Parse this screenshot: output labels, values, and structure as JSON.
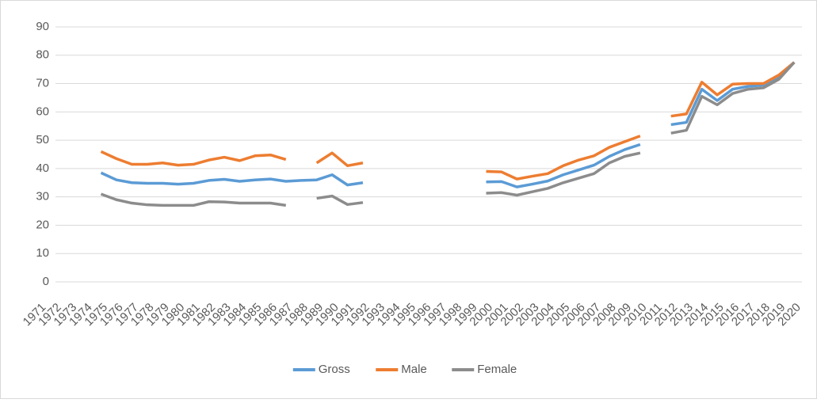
{
  "chart_data": {
    "type": "line",
    "categories": [
      "1971",
      "1972",
      "1973",
      "1974",
      "1975",
      "1976",
      "1977",
      "1978",
      "1979",
      "1980",
      "1981",
      "1982",
      "1983",
      "1984",
      "1985",
      "1986",
      "1987",
      "1988",
      "1989",
      "1990",
      "1991",
      "1992",
      "1993",
      "1994",
      "1995",
      "1996",
      "1997",
      "1998",
      "1999",
      "2000",
      "2001",
      "2002",
      "2003",
      "2004",
      "2005",
      "2006",
      "2007",
      "2008",
      "2009",
      "2010",
      "2011",
      "2012",
      "2013",
      "2014",
      "2015",
      "2016",
      "2017",
      "2018",
      "2019",
      "2020"
    ],
    "series": [
      {
        "name": "Gross",
        "color": "#5b9bd5",
        "values": [
          null,
          null,
          null,
          null,
          38.5,
          36,
          35,
          34.8,
          34.8,
          34.5,
          34.8,
          35.8,
          36.2,
          35.5,
          36,
          36.3,
          35.5,
          35.8,
          36,
          37.8,
          34.2,
          35,
          null,
          null,
          null,
          null,
          null,
          null,
          null,
          35.3,
          35.4,
          33.5,
          34.5,
          35.6,
          37.8,
          39.5,
          41.2,
          44.3,
          46.7,
          48.5,
          null,
          55.5,
          56.3,
          68,
          64,
          68,
          69,
          69.5,
          72.5,
          77.5
        ]
      },
      {
        "name": "Male",
        "color": "#ed7d31",
        "values": [
          null,
          null,
          null,
          null,
          46,
          43.5,
          41.5,
          41.5,
          42,
          41.2,
          41.5,
          43,
          44,
          42.8,
          44.5,
          44.8,
          43.2,
          null,
          42,
          45.5,
          41,
          42,
          null,
          null,
          null,
          null,
          null,
          null,
          null,
          39,
          38.8,
          36.3,
          37.3,
          38.2,
          41,
          43,
          44.5,
          47.5,
          49.5,
          51.5,
          null,
          58.5,
          59.3,
          70.5,
          66,
          69.8,
          70,
          70,
          73,
          77.5
        ]
      },
      {
        "name": "Female",
        "color": "#8c8c8c",
        "values": [
          null,
          null,
          null,
          null,
          31,
          29,
          27.8,
          27.2,
          27,
          27,
          27,
          28.3,
          28.2,
          27.8,
          27.8,
          27.8,
          27,
          null,
          29.5,
          30.3,
          27.3,
          28,
          null,
          null,
          null,
          null,
          null,
          null,
          null,
          31.3,
          31.5,
          30.6,
          31.8,
          33,
          35,
          36.6,
          38.2,
          42,
          44.3,
          45.5,
          null,
          52.5,
          53.5,
          65.5,
          62.5,
          66.5,
          68,
          68.5,
          71.5,
          77.5
        ]
      }
    ],
    "ylim": [
      0,
      90
    ],
    "yticks": [
      0,
      10,
      20,
      30,
      40,
      50,
      60,
      70,
      80,
      90
    ],
    "grid": true,
    "legend": "bottom"
  }
}
